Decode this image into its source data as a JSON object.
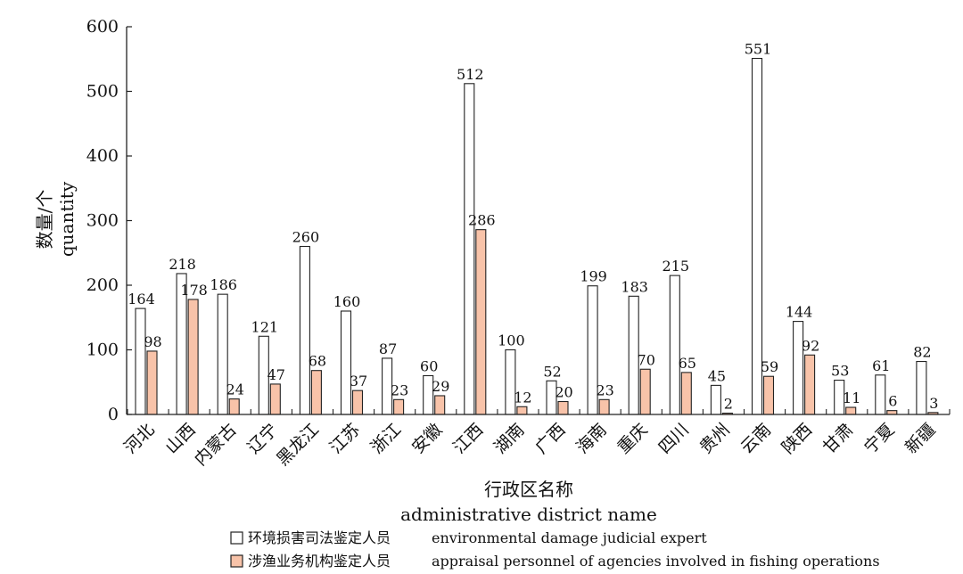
{
  "chart_data": {
    "type": "bar",
    "ylabel_cn": "数量/个",
    "ylabel_en": "quantity",
    "xlabel_cn": "行政区名称",
    "xlabel_en": "administrative district name",
    "ylim": [
      0,
      600
    ],
    "yticks": [
      0,
      100,
      200,
      300,
      400,
      500,
      600
    ],
    "grid": false,
    "legend_position": "bottom",
    "categories": [
      "河北",
      "山西",
      "内蒙古",
      "辽宁",
      "黑龙江",
      "江苏",
      "浙江",
      "安徽",
      "江西",
      "湖南",
      "广西",
      "海南",
      "重庆",
      "四川",
      "贵州",
      "云南",
      "陕西",
      "甘肃",
      "宁夏",
      "新疆"
    ],
    "series": [
      {
        "name_cn": "环境损害司法鉴定人员",
        "name_en": "environmental damage judicial expert",
        "color": "#ffffff",
        "values": [
          164,
          218,
          186,
          121,
          260,
          160,
          87,
          60,
          512,
          100,
          52,
          199,
          183,
          215,
          45,
          551,
          144,
          53,
          61,
          82
        ]
      },
      {
        "name_cn": "涉渔业务机构鉴定人员",
        "name_en": "appraisal personnel of agencies involved in fishing operations",
        "color": "#f8c3a9",
        "values": [
          98,
          178,
          24,
          47,
          68,
          37,
          23,
          29,
          286,
          12,
          20,
          23,
          70,
          65,
          2,
          59,
          92,
          11,
          6,
          3
        ]
      }
    ]
  }
}
